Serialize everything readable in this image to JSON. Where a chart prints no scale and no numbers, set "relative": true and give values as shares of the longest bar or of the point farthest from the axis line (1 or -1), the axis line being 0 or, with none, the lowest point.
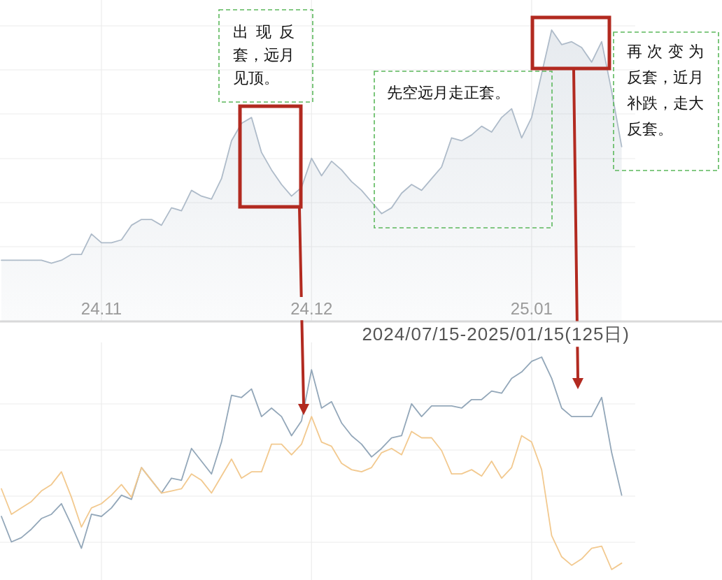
{
  "chart_data": [
    {
      "type": "area",
      "relative": true,
      "grid": true,
      "categories": [
        null,
        null,
        null,
        null,
        null,
        null,
        null,
        null,
        null,
        null,
        "24.11",
        null,
        null,
        null,
        null,
        null,
        null,
        null,
        null,
        null,
        null,
        null,
        null,
        null,
        null,
        null,
        null,
        null,
        null,
        null,
        null,
        "24.12",
        null,
        null,
        null,
        null,
        null,
        null,
        null,
        null,
        null,
        null,
        null,
        null,
        null,
        null,
        null,
        null,
        null,
        null,
        null,
        null,
        null,
        "25.01",
        null,
        null,
        null,
        null,
        null,
        null,
        null,
        null,
        null
      ],
      "series": [
        {
          "color": "#aebbc9",
          "values": [
            0.21,
            0.21,
            0.21,
            0.21,
            0.21,
            0.2,
            0.21,
            0.23,
            0.23,
            0.3,
            0.27,
            0.27,
            0.28,
            0.33,
            0.35,
            0.35,
            0.33,
            0.39,
            0.38,
            0.45,
            0.43,
            0.42,
            0.49,
            0.62,
            0.68,
            0.7,
            0.58,
            0.52,
            0.47,
            0.43,
            0.46,
            0.56,
            0.5,
            0.55,
            0.52,
            0.48,
            0.45,
            0.41,
            0.37,
            0.39,
            0.44,
            0.47,
            0.45,
            0.49,
            0.53,
            0.63,
            0.62,
            0.64,
            0.67,
            0.65,
            0.7,
            0.73,
            0.63,
            0.7,
            0.85,
            1.0,
            0.95,
            0.96,
            0.94,
            0.89,
            0.96,
            0.79,
            0.6
          ]
        }
      ],
      "annotations": [
        "出现反套，远月见顶。",
        "先空远月走正套。",
        "再次变为反套，近月补跌，走大反套。"
      ]
    },
    {
      "type": "line",
      "relative": true,
      "grid": true,
      "tick_labels": false,
      "categories": [
        null,
        null,
        null,
        null,
        null,
        null,
        null,
        null,
        null,
        null,
        "24.11",
        null,
        null,
        null,
        null,
        null,
        null,
        null,
        null,
        null,
        null,
        null,
        null,
        null,
        null,
        null,
        null,
        null,
        null,
        null,
        null,
        "24.12",
        null,
        null,
        null,
        null,
        null,
        null,
        null,
        null,
        null,
        null,
        null,
        null,
        null,
        null,
        null,
        null,
        null,
        null,
        null,
        null,
        null,
        "25.01",
        null,
        null,
        null,
        null,
        null,
        null,
        null,
        null,
        null
      ],
      "series": [
        {
          "color": "#93a7b9",
          "values": [
            0.25,
            0.13,
            0.15,
            0.19,
            0.24,
            0.26,
            0.31,
            0.21,
            0.1,
            0.26,
            0.25,
            0.29,
            0.35,
            0.33,
            0.48,
            0.42,
            0.36,
            0.43,
            0.42,
            0.57,
            0.51,
            0.45,
            0.6,
            0.82,
            0.81,
            0.85,
            0.72,
            0.76,
            0.72,
            0.63,
            0.7,
            0.94,
            0.76,
            0.79,
            0.69,
            0.63,
            0.59,
            0.53,
            0.57,
            0.62,
            0.63,
            0.78,
            0.72,
            0.77,
            0.77,
            0.77,
            0.76,
            0.8,
            0.8,
            0.84,
            0.83,
            0.9,
            0.93,
            0.98,
            1.0,
            0.9,
            0.76,
            0.72,
            0.72,
            0.72,
            0.81,
            0.55,
            0.35
          ]
        },
        {
          "color": "#f2c98f",
          "values": [
            0.38,
            0.26,
            0.29,
            0.32,
            0.37,
            0.4,
            0.46,
            0.34,
            0.2,
            0.29,
            0.31,
            0.35,
            0.4,
            0.34,
            0.48,
            0.42,
            0.36,
            0.37,
            0.38,
            0.45,
            0.42,
            0.36,
            0.44,
            0.52,
            0.43,
            0.46,
            0.46,
            0.59,
            0.59,
            0.54,
            0.59,
            0.72,
            0.6,
            0.58,
            0.5,
            0.47,
            0.46,
            0.48,
            0.55,
            0.57,
            0.54,
            0.65,
            0.62,
            0.62,
            0.56,
            0.45,
            0.45,
            0.47,
            0.44,
            0.51,
            0.43,
            0.48,
            0.63,
            0.6,
            0.47,
            0.16,
            0.06,
            0.02,
            0.05,
            0.1,
            0.11,
            0,
            0.03
          ]
        }
      ],
      "annotations": [
        "2024/07/15-2025/01/15(125日)"
      ]
    }
  ]
}
